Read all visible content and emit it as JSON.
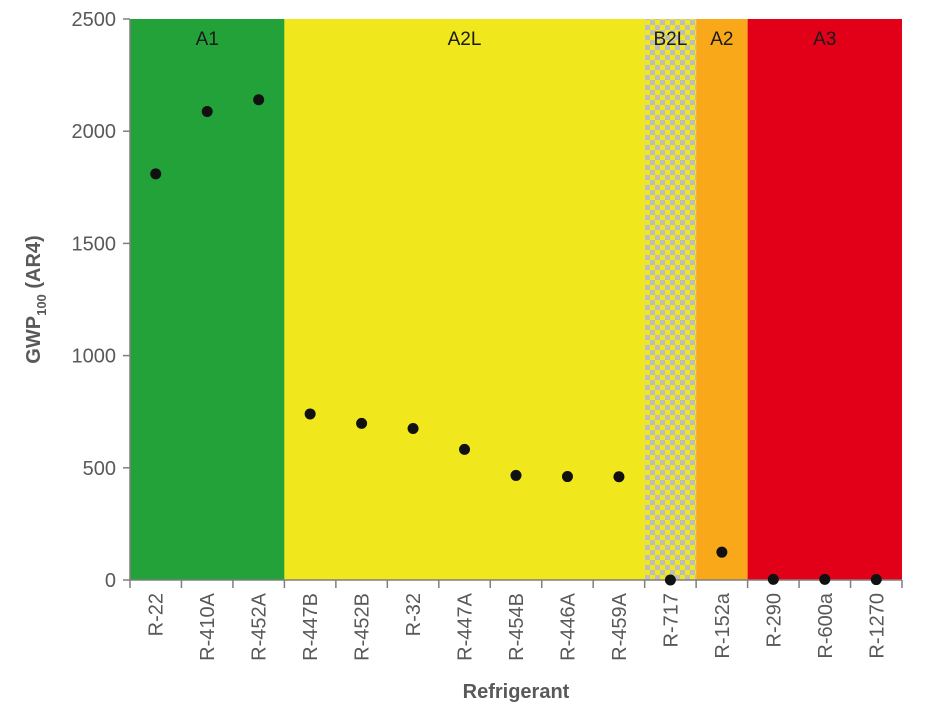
{
  "chart_data": {
    "type": "scatter",
    "title": "",
    "xlabel": "Refrigerant",
    "ylabel": {
      "main": "GWP",
      "subscript": "100",
      "suffix": " (AR4)"
    },
    "ylim": [
      0,
      2500
    ],
    "yticks": [
      "0",
      "500",
      "1000",
      "1500",
      "2000",
      "2500"
    ],
    "grid": false,
    "categories": [
      "R-22",
      "R-410A",
      "R-452A",
      "R-447B",
      "R-452B",
      "R-32",
      "R-447A",
      "R-454B",
      "R-446A",
      "R-459A",
      "R-717",
      "R-152a",
      "R-290",
      "R-600a",
      "R-1270"
    ],
    "series": [
      {
        "name": "GWP100 (AR4)",
        "values": [
          1810,
          2088,
          2140,
          740,
          698,
          675,
          582,
          466,
          461,
          460,
          0,
          124,
          3,
          3,
          2
        ]
      }
    ],
    "bands": [
      {
        "label": "A1",
        "from": "R-22",
        "to": "R-452A",
        "color": "#22a238",
        "pattern": "solid"
      },
      {
        "label": "A2L",
        "from": "R-447B",
        "to": "R-459A",
        "color": "#f0e81c",
        "pattern": "solid"
      },
      {
        "label": "B2L",
        "from": "R-717",
        "to": "R-717",
        "color": "#f0e81c",
        "pattern": "checker",
        "color2": "#bdbdbd"
      },
      {
        "label": "A2",
        "from": "R-152a",
        "to": "R-152a",
        "color": "#f9a81a",
        "pattern": "solid"
      },
      {
        "label": "A3",
        "from": "R-290",
        "to": "R-1270",
        "color": "#e20019",
        "pattern": "solid"
      }
    ],
    "marker_color": "#111111"
  }
}
